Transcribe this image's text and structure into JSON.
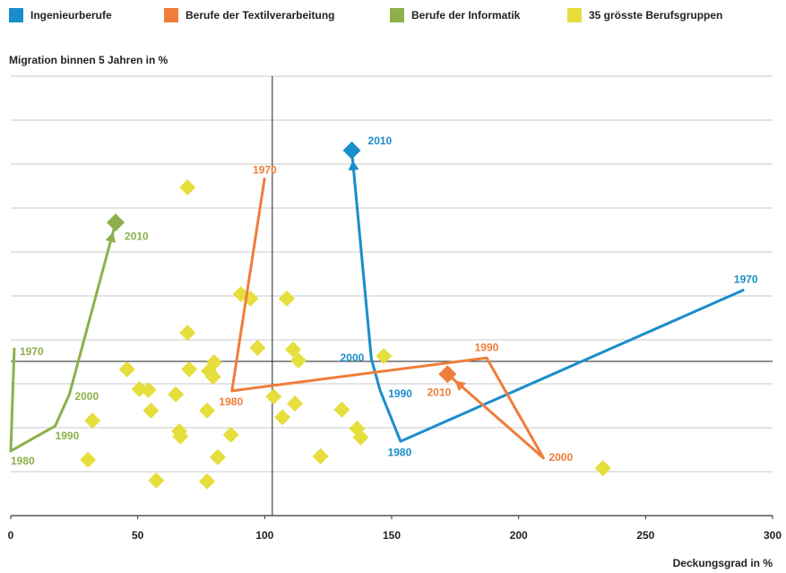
{
  "chart_data": {
    "type": "trajectory-scatter",
    "y_axis_label": "Migration binnen 5 Jahren in %",
    "x_axis_label": "Deckungsgrad in %",
    "xlim": [
      0,
      300
    ],
    "xticks": [
      0,
      50,
      100,
      150,
      200,
      250,
      300
    ],
    "ylim": [
      0,
      10
    ],
    "yticks": [
      0,
      1,
      2,
      3,
      4,
      5,
      6,
      7,
      8,
      9,
      10
    ],
    "grid": true,
    "xref": 103,
    "yref": 3.51,
    "legend": "top",
    "series": [
      {
        "name": "Ingenieurberufe",
        "color": "#1a8dcb",
        "x": [
          288.8,
          153.5,
          145.5,
          142,
          134.3
        ],
        "y": [
          5.14,
          1.69,
          2.84,
          3.57,
          8.31
        ],
        "labels": [
          "1970",
          "1980",
          "1990",
          "2000",
          "2010"
        ]
      },
      {
        "name": "Berufe der Textilverarbeitung",
        "color": "#ef7d3b",
        "x": [
          100,
          87.1,
          187.4,
          209.8,
          172
        ],
        "y": [
          7.69,
          2.84,
          3.59,
          1.31,
          3.22
        ],
        "labels": [
          "1970",
          "1980",
          "1990",
          "2000",
          "2010"
        ]
      },
      {
        "name": "Berufe der Informatik",
        "color": "#8db04b",
        "x": [
          1.4,
          0,
          17.5,
          23.1,
          41.3
        ],
        "y": [
          3.82,
          1.47,
          2.04,
          2.76,
          6.67
        ],
        "labels": [
          "1970",
          "1980",
          "1990",
          "2000",
          "2010"
        ]
      },
      {
        "name": "35 grösste Berufsgruppen",
        "color": "#e6de3c",
        "x": [
          69.6,
          90.6,
          94.4,
          108.7,
          69.6,
          97.2,
          111.2,
          113.3,
          80.1,
          70.3,
          45.8,
          78.0,
          79.7,
          146.9,
          50.7,
          54.2,
          65.0,
          103.5,
          111.9,
          55.2,
          77.3,
          107.0,
          130.4,
          32.2,
          66.4,
          66.8,
          86.7,
          136.4,
          137.8,
          122.0,
          81.5,
          30.4,
          57.3,
          77.3,
          233.2
        ],
        "y": [
          7.47,
          5.04,
          4.94,
          4.94,
          4.16,
          3.82,
          3.78,
          3.53,
          3.49,
          3.33,
          3.33,
          3.29,
          3.16,
          3.63,
          2.88,
          2.86,
          2.76,
          2.71,
          2.55,
          2.39,
          2.39,
          2.24,
          2.41,
          2.16,
          1.92,
          1.8,
          1.84,
          1.98,
          1.78,
          1.35,
          1.33,
          1.27,
          0.8,
          0.78,
          1.08
        ]
      }
    ]
  }
}
